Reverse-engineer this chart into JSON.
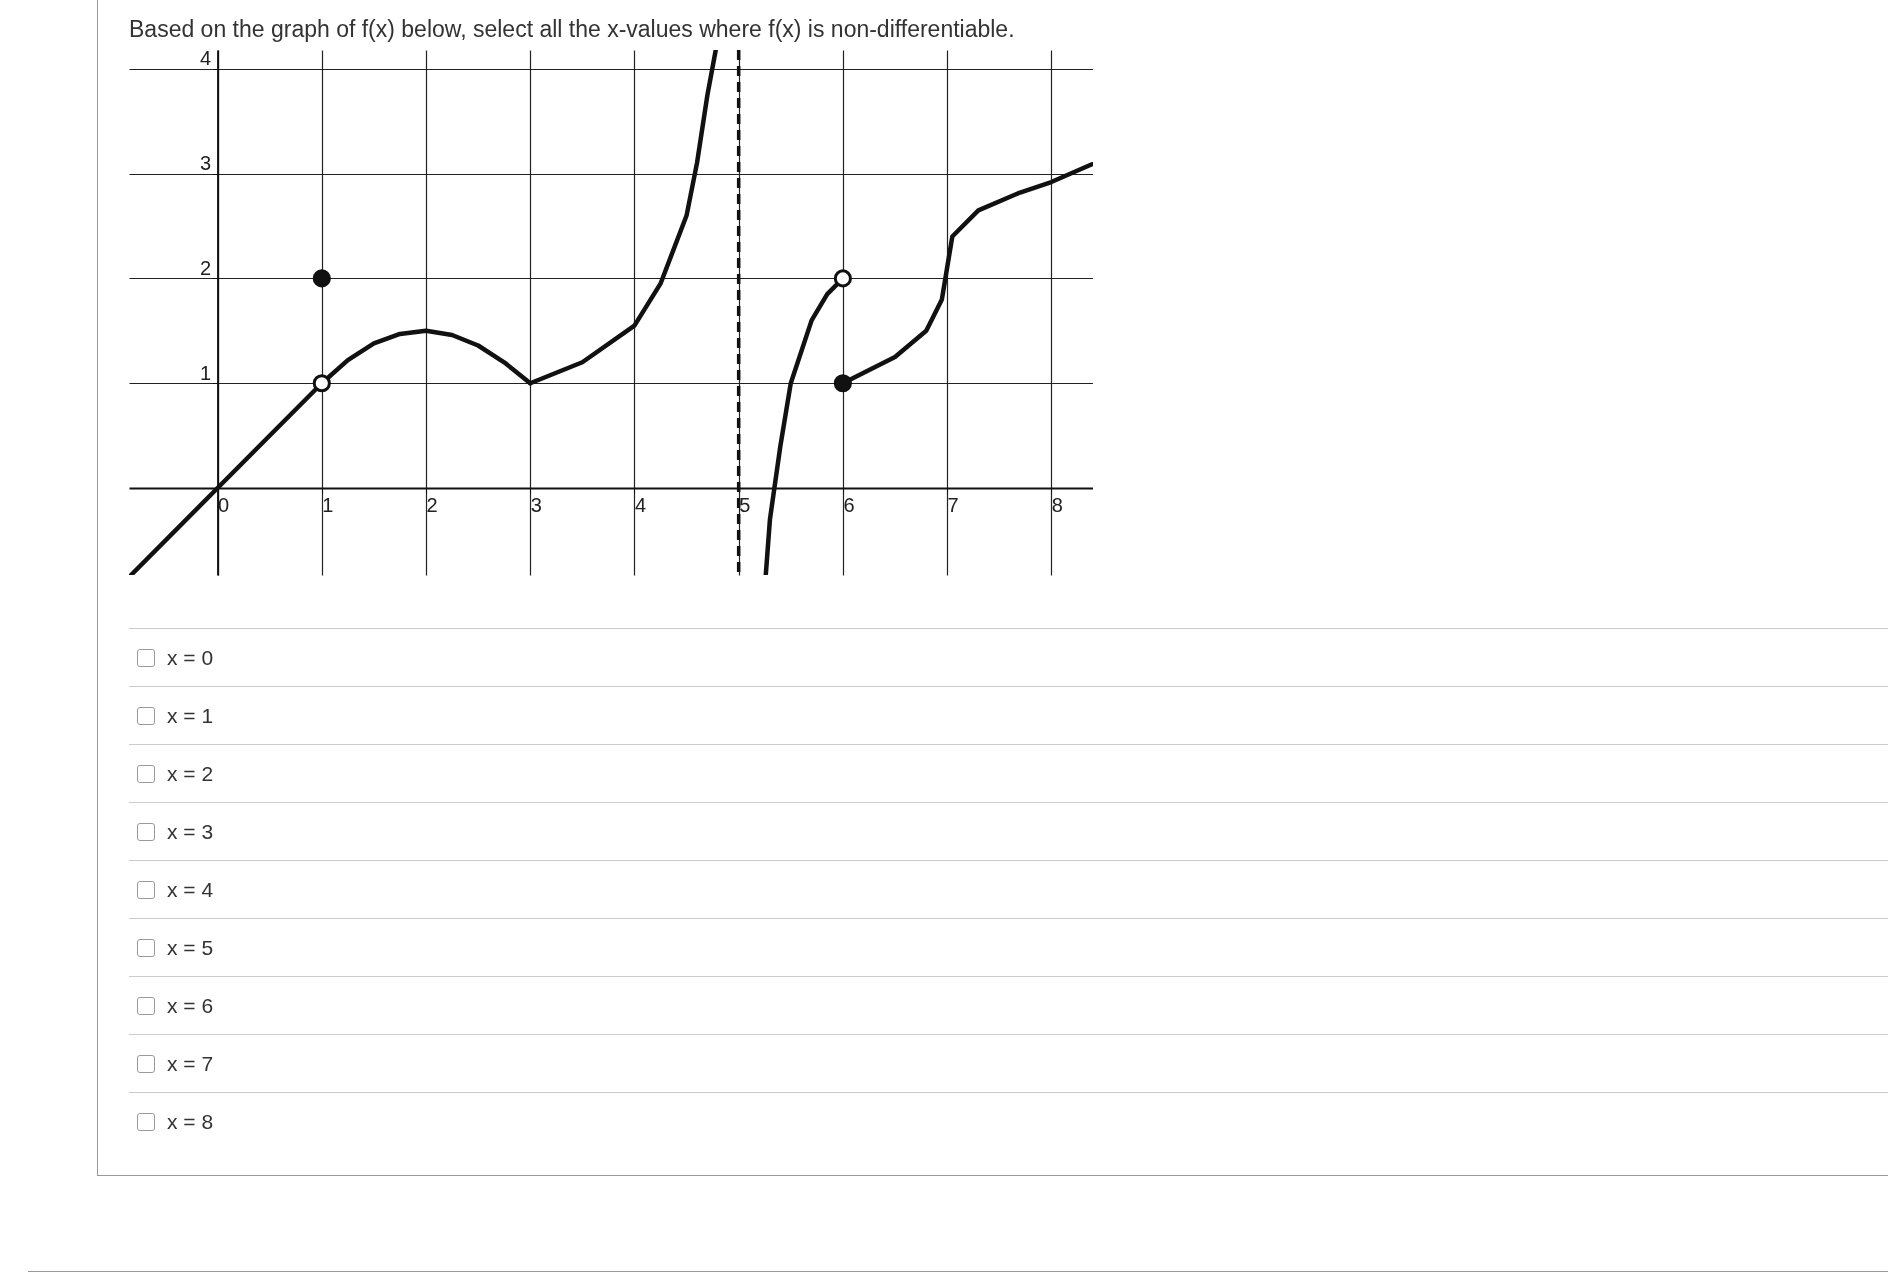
{
  "chart_data": {
    "type": "line",
    "title": "Based on the graph of f(x) below, select all the x-values where f(x) is non-differentiable.",
    "series": [
      {
        "color": "#111111",
        "x": [
          -0.83,
          0,
          1
        ],
        "values": [
          -0.83,
          0,
          1
        ]
      },
      {
        "color": "#111111",
        "x": [
          1,
          1.25,
          1.5,
          1.75,
          2,
          2.25,
          2.5,
          2.75,
          3
        ],
        "values": [
          1,
          1.22,
          1.38,
          1.47,
          1.5,
          1.46,
          1.36,
          1.2,
          1
        ]
      },
      {
        "color": "#111111",
        "x": [
          3,
          3.5,
          4,
          4.25,
          4.5,
          4.6,
          4.7,
          4.78
        ],
        "values": [
          1,
          1.2,
          1.55,
          1.95,
          2.6,
          3.1,
          3.75,
          4.18
        ]
      },
      {
        "color": "#111111",
        "x": [
          5.26,
          5.3,
          5.4,
          5.5,
          5.7,
          5.85,
          6
        ],
        "values": [
          -0.83,
          -0.3,
          0.4,
          1.0,
          1.6,
          1.85,
          2
        ]
      },
      {
        "color": "#111111",
        "x": [
          6,
          6.5,
          6.8,
          6.95,
          7,
          7.05,
          7.3,
          7.7,
          8,
          8.39
        ],
        "values": [
          1,
          1.25,
          1.5,
          1.8,
          2.1,
          2.4,
          2.65,
          2.82,
          2.92,
          3.09
        ]
      },
      {
        "type": "scatter",
        "marker": "circle",
        "color": "#111111",
        "x": [
          1,
          6
        ],
        "values": [
          2,
          1
        ]
      },
      {
        "type": "scatter",
        "marker": "circle",
        "color": "#ffffff",
        "x": [
          1,
          6
        ],
        "values": [
          1,
          2
        ]
      }
    ],
    "xlim": [
      -0.85,
      8.4
    ],
    "ylim": [
      -0.83,
      4.18
    ],
    "xticks": [
      0,
      1,
      2,
      3,
      4,
      5,
      6,
      7,
      8
    ],
    "yticks": [
      1,
      2,
      3,
      4
    ],
    "grid": true,
    "ref_lines": [
      {
        "axis": "x",
        "value": 5,
        "line_style": "dashed"
      }
    ],
    "annotations": [
      "x = 0",
      "x = 1",
      "x = 2",
      "x = 3",
      "x = 4",
      "x = 5",
      "x = 6",
      "x = 7",
      "x = 8"
    ]
  }
}
